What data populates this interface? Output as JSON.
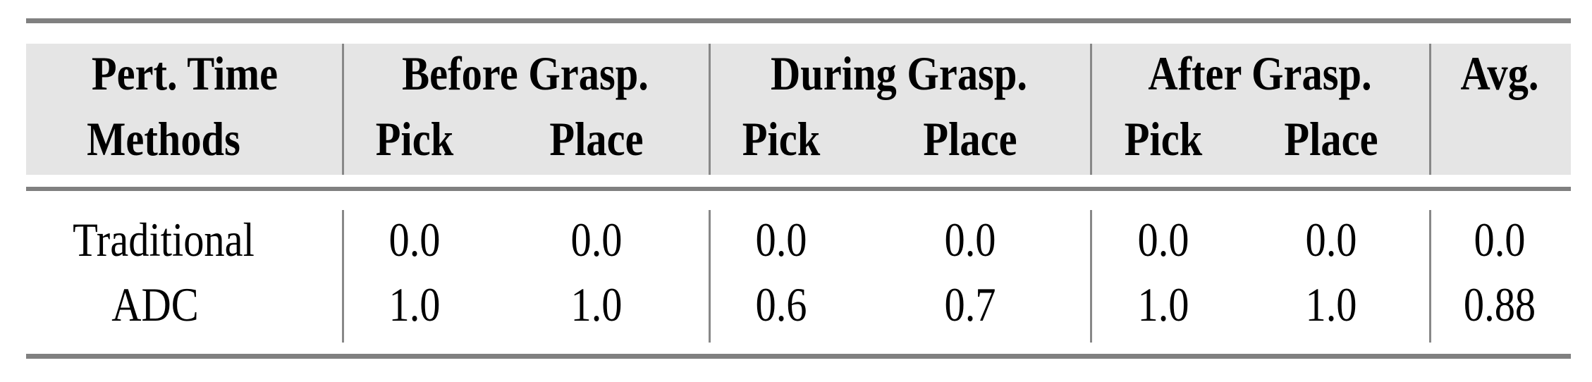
{
  "header": {
    "row1": [
      "Pert. Time",
      "Before Grasp.",
      "During Grasp.",
      "After Grasp.",
      "Avg."
    ],
    "row2": [
      "Methods",
      "Pick",
      "Place",
      "Pick",
      "Place",
      "Pick",
      "Place"
    ]
  },
  "rows": [
    {
      "method": "Traditional",
      "values": [
        "0.0",
        "0.0",
        "0.0",
        "0.0",
        "0.0",
        "0.0",
        "0.0"
      ]
    },
    {
      "method": "ADC",
      "values": [
        "1.0",
        "1.0",
        "0.6",
        "0.7",
        "1.0",
        "1.0",
        "0.88"
      ]
    }
  ],
  "colors": {
    "rule": "#808080",
    "header_band": "#e5e5e5"
  }
}
